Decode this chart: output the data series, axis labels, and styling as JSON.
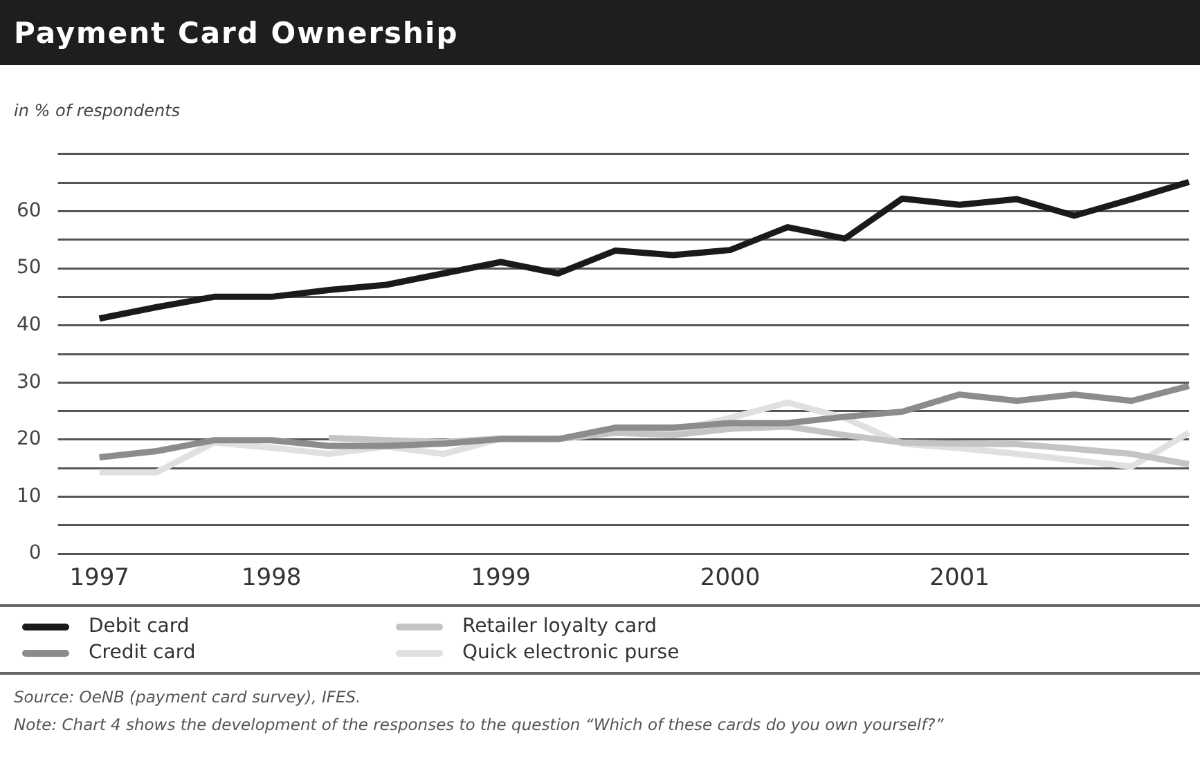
{
  "chart_data": {
    "type": "line",
    "title": "Payment Card Ownership",
    "ylabel": "in % of respondents",
    "categories": [
      "1997",
      null,
      null,
      "1998",
      null,
      null,
      null,
      "1999",
      null,
      null,
      null,
      "2000",
      null,
      null,
      null,
      "2001",
      null,
      null,
      null,
      null
    ],
    "series": [
      {
        "name": "Debit card",
        "color": "#1a1a1a",
        "values": [
          41.2,
          43.2,
          45,
          45,
          46.2,
          47.1,
          49.1,
          51.1,
          49.1,
          53.1,
          52.3,
          53.2,
          57.2,
          55.2,
          62.2,
          61.1,
          62.1,
          59.2,
          62.1,
          65.1
        ]
      },
      {
        "name": "Credit  card",
        "color": "#8c8c8c",
        "values": [
          16.9,
          18,
          19.9,
          19.9,
          18.9,
          18.9,
          19.3,
          20.1,
          20.1,
          22.1,
          22.1,
          22.9,
          22.9,
          24,
          24.9,
          27.9,
          26.8,
          27.9,
          26.8,
          29.4
        ]
      },
      {
        "name": "Retailer loyalty card",
        "color": "#c4c4c4",
        "values": [
          null,
          null,
          null,
          null,
          20.3,
          19.9,
          19.6,
          20.2,
          20.1,
          21.2,
          20.8,
          21.9,
          22.3,
          20.8,
          19.5,
          19.3,
          19.2,
          18.4,
          17.5,
          15.7
        ]
      },
      {
        "name": "Quick electronic purse",
        "color": "#e0e0e0",
        "values": [
          14.3,
          14.3,
          19.5,
          18.6,
          17.5,
          18.8,
          17.5,
          20.2,
          20.2,
          21.4,
          21.5,
          23.8,
          26.5,
          23.8,
          19.3,
          18.5,
          17.5,
          16.4,
          15.3,
          21.2
        ]
      }
    ],
    "ylim": [
      0,
      70
    ],
    "yticks": [
      0,
      {
        "value": 5,
        "label": null
      },
      10,
      {
        "value": 15,
        "label": null
      },
      20,
      {
        "value": 25,
        "label": null
      },
      30,
      {
        "value": 35,
        "label": null
      },
      40,
      {
        "value": 45,
        "label": null
      },
      50,
      {
        "value": 55,
        "label": null
      },
      60,
      {
        "value": 65,
        "label": null
      },
      {
        "value": 70,
        "label": null
      }
    ],
    "grid": "y",
    "legend": "bottom",
    "marker": "none",
    "line_style": "solid",
    "annotations": [
      "Source: OeNB (payment card survey), IFES.",
      "Note: Chart 4 shows the development of the responses to the question “Which of these cards do you own yourself?”"
    ]
  }
}
